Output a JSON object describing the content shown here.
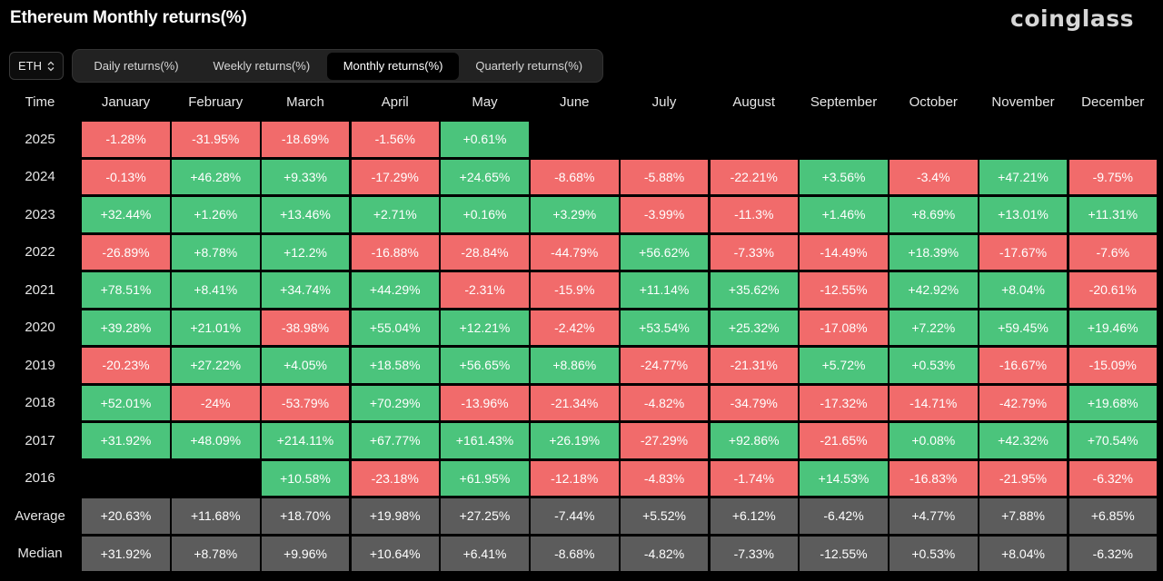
{
  "header": {
    "title": "Ethereum Monthly returns(%)",
    "brand": "coinglass"
  },
  "asset_select": {
    "value": "ETH",
    "icon": "chevron-updown-icon"
  },
  "tabs": [
    {
      "label": "Daily returns(%)",
      "active": false
    },
    {
      "label": "Weekly returns(%)",
      "active": false
    },
    {
      "label": "Monthly returns(%)",
      "active": true
    },
    {
      "label": "Quarterly returns(%)",
      "active": false
    }
  ],
  "colors": {
    "positive": "#4bc47c",
    "negative": "#f16b6b",
    "stat": "#5c5c5c",
    "background": "#000000"
  },
  "table": {
    "time_header": "Time",
    "months": [
      "January",
      "February",
      "March",
      "April",
      "May",
      "June",
      "July",
      "August",
      "September",
      "October",
      "November",
      "December"
    ],
    "rows": [
      {
        "label": "2025",
        "values": [
          "-1.28%",
          "-31.95%",
          "-18.69%",
          "-1.56%",
          "+0.61%",
          "",
          "",
          "",
          "",
          "",
          "",
          ""
        ]
      },
      {
        "label": "2024",
        "values": [
          "-0.13%",
          "+46.28%",
          "+9.33%",
          "-17.29%",
          "+24.65%",
          "-8.68%",
          "-5.88%",
          "-22.21%",
          "+3.56%",
          "-3.4%",
          "+47.21%",
          "-9.75%"
        ]
      },
      {
        "label": "2023",
        "values": [
          "+32.44%",
          "+1.26%",
          "+13.46%",
          "+2.71%",
          "+0.16%",
          "+3.29%",
          "-3.99%",
          "-11.3%",
          "+1.46%",
          "+8.69%",
          "+13.01%",
          "+11.31%"
        ]
      },
      {
        "label": "2022",
        "values": [
          "-26.89%",
          "+8.78%",
          "+12.2%",
          "-16.88%",
          "-28.84%",
          "-44.79%",
          "+56.62%",
          "-7.33%",
          "-14.49%",
          "+18.39%",
          "-17.67%",
          "-7.6%"
        ]
      },
      {
        "label": "2021",
        "values": [
          "+78.51%",
          "+8.41%",
          "+34.74%",
          "+44.29%",
          "-2.31%",
          "-15.9%",
          "+11.14%",
          "+35.62%",
          "-12.55%",
          "+42.92%",
          "+8.04%",
          "-20.61%"
        ]
      },
      {
        "label": "2020",
        "values": [
          "+39.28%",
          "+21.01%",
          "-38.98%",
          "+55.04%",
          "+12.21%",
          "-2.42%",
          "+53.54%",
          "+25.32%",
          "-17.08%",
          "+7.22%",
          "+59.45%",
          "+19.46%"
        ]
      },
      {
        "label": "2019",
        "values": [
          "-20.23%",
          "+27.22%",
          "+4.05%",
          "+18.58%",
          "+56.65%",
          "+8.86%",
          "-24.77%",
          "-21.31%",
          "+5.72%",
          "+0.53%",
          "-16.67%",
          "-15.09%"
        ]
      },
      {
        "label": "2018",
        "values": [
          "+52.01%",
          "-24%",
          "-53.79%",
          "+70.29%",
          "-13.96%",
          "-21.34%",
          "-4.82%",
          "-34.79%",
          "-17.32%",
          "-14.71%",
          "-42.79%",
          "+19.68%"
        ]
      },
      {
        "label": "2017",
        "values": [
          "+31.92%",
          "+48.09%",
          "+214.11%",
          "+67.77%",
          "+161.43%",
          "+26.19%",
          "-27.29%",
          "+92.86%",
          "-21.65%",
          "+0.08%",
          "+42.32%",
          "+70.54%"
        ]
      },
      {
        "label": "2016",
        "values": [
          "",
          "",
          "+10.58%",
          "-23.18%",
          "+61.95%",
          "-12.18%",
          "-4.83%",
          "-1.74%",
          "+14.53%",
          "-16.83%",
          "-21.95%",
          "-6.32%"
        ]
      }
    ],
    "stats": [
      {
        "label": "Average",
        "values": [
          "+20.63%",
          "+11.68%",
          "+18.70%",
          "+19.98%",
          "+27.25%",
          "-7.44%",
          "+5.52%",
          "+6.12%",
          "-6.42%",
          "+4.77%",
          "+7.88%",
          "+6.85%"
        ]
      },
      {
        "label": "Median",
        "values": [
          "+31.92%",
          "+8.78%",
          "+9.96%",
          "+10.64%",
          "+6.41%",
          "-8.68%",
          "-4.82%",
          "-7.33%",
          "-12.55%",
          "+0.53%",
          "+8.04%",
          "-6.32%"
        ]
      }
    ]
  }
}
